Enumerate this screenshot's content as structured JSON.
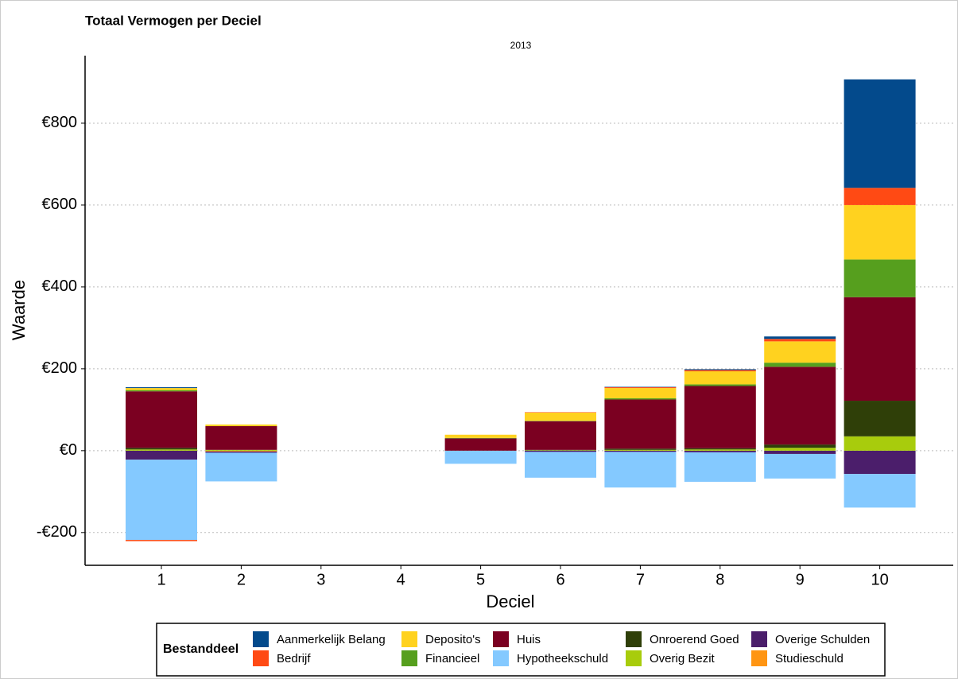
{
  "chart_data": {
    "type": "stacked_bar",
    "title": "Totaal Vermogen per Deciel",
    "subtitle": "2013",
    "x_label": "Deciel",
    "y_label": "Waarde",
    "legend_title": "Bestanddeel",
    "grid": true,
    "categories": [
      "1",
      "2",
      "3",
      "4",
      "5",
      "6",
      "7",
      "8",
      "9",
      "10"
    ],
    "ylim": [
      -280,
      965
    ],
    "yticks": [
      {
        "value": -200,
        "label": "-€200"
      },
      {
        "value": 0,
        "label": "€0"
      },
      {
        "value": 200,
        "label": "€200"
      },
      {
        "value": 400,
        "label": "€400"
      },
      {
        "value": 600,
        "label": "€600"
      },
      {
        "value": 800,
        "label": "€800"
      }
    ],
    "series": [
      {
        "name": "Aanmerkelijk Belang",
        "color": "#034a8c",
        "values": [
          2,
          0,
          0,
          0,
          0,
          0,
          1,
          2,
          6,
          265
        ]
      },
      {
        "name": "Bedrijf",
        "color": "#ff4a14",
        "values": [
          -3,
          0,
          0,
          0,
          0,
          1,
          2,
          3,
          6,
          42
        ]
      },
      {
        "name": "Deposito's",
        "color": "#ffd21f",
        "values": [
          5,
          4,
          0,
          0,
          8,
          20,
          25,
          32,
          52,
          133
        ]
      },
      {
        "name": "Financieel",
        "color": "#569f1e",
        "values": [
          3,
          0,
          0,
          0,
          1,
          1,
          3,
          4,
          10,
          92
        ]
      },
      {
        "name": "Huis",
        "color": "#7b0021",
        "values": [
          138,
          58,
          0,
          0,
          30,
          70,
          120,
          152,
          190,
          253
        ]
      },
      {
        "name": "Hypotheekschuld",
        "color": "#84c9ff",
        "values": [
          -196,
          -70,
          0,
          0,
          -32,
          -63,
          -87,
          -72,
          -60,
          -82
        ]
      },
      {
        "name": "Onroerend Goed",
        "color": "#2f3f08",
        "values": [
          4,
          0,
          0,
          0,
          0,
          1,
          3,
          3,
          8,
          87
        ]
      },
      {
        "name": "Overig Bezit",
        "color": "#a8cc0c",
        "values": [
          3,
          2,
          0,
          0,
          0,
          1,
          2,
          3,
          7,
          35
        ]
      },
      {
        "name": "Overige Schulden",
        "color": "#4b1e6b",
        "values": [
          -22,
          -3,
          0,
          0,
          0,
          -3,
          -3,
          -4,
          -8,
          -57
        ]
      },
      {
        "name": "Studieschuld",
        "color": "#ff9512",
        "values": [
          0,
          -2,
          0,
          0,
          0,
          0,
          0,
          0,
          0,
          0
        ]
      }
    ]
  }
}
